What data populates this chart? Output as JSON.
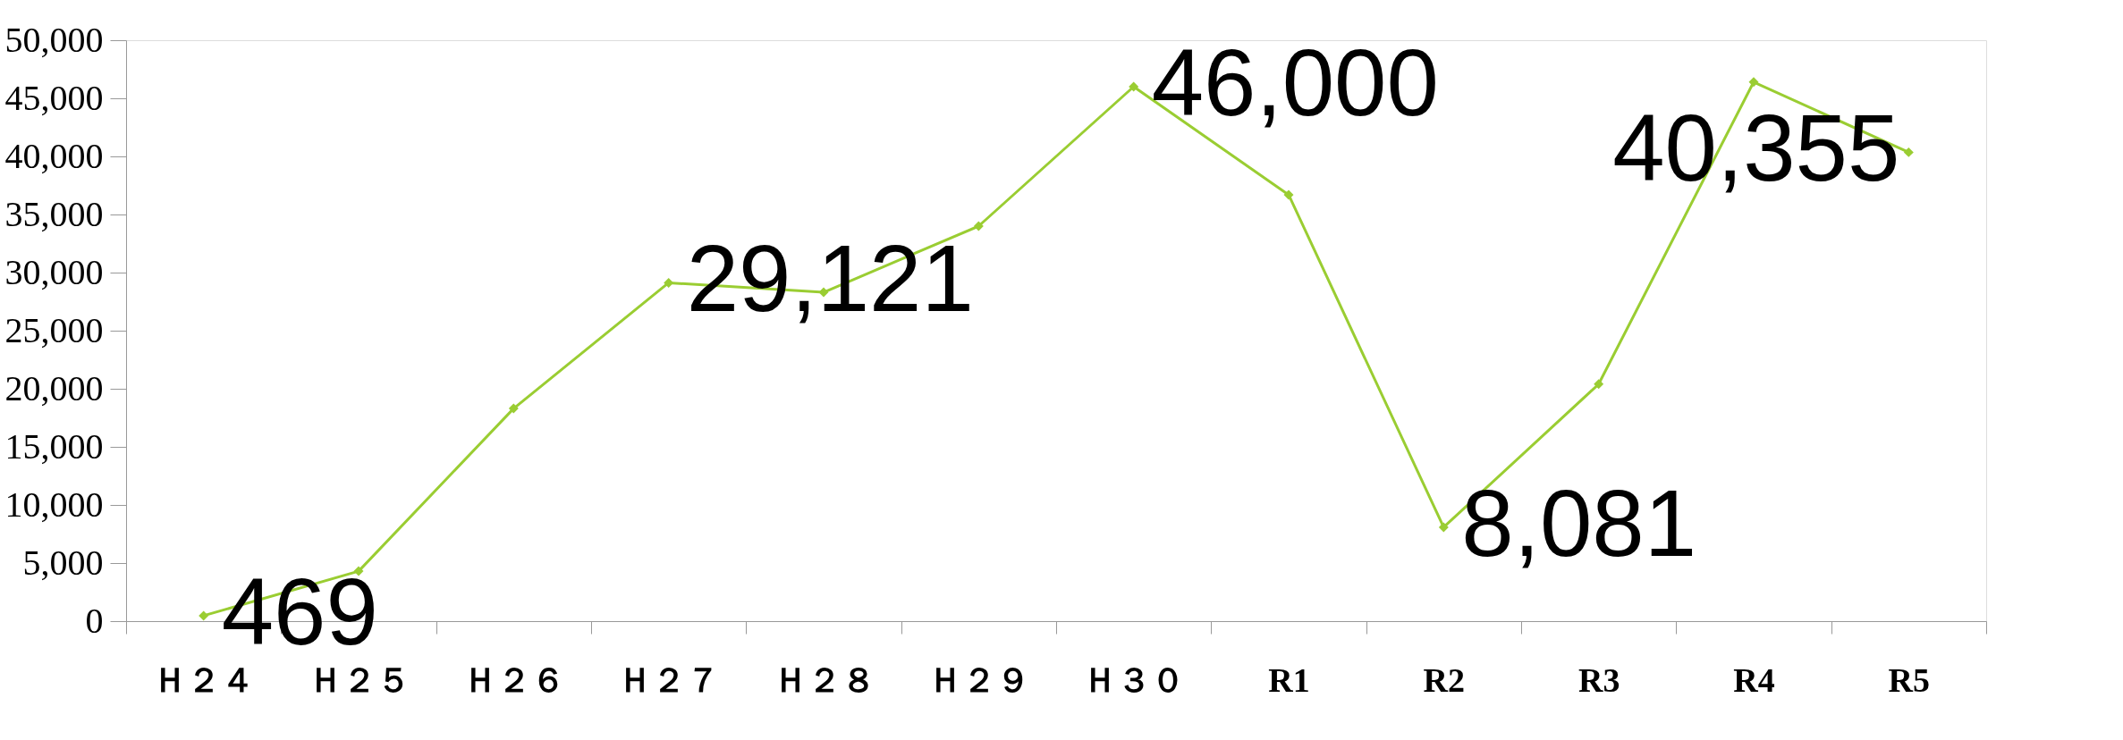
{
  "chart_data": {
    "type": "line",
    "categories": [
      "Ｈ２４",
      "Ｈ２５",
      "Ｈ２６",
      "Ｈ２７",
      "Ｈ２８",
      "Ｈ２９",
      "Ｈ３０",
      "R1",
      "R2",
      "R3",
      "R4",
      "R5"
    ],
    "series": [
      {
        "color": "#9acd32",
        "values": [
          469,
          4300,
          18300,
          29121,
          28300,
          34000,
          46000,
          36700,
          8081,
          20400,
          46400,
          40355
        ],
        "value_labels": [
          "469",
          null,
          null,
          "29,121",
          null,
          null,
          "46,000",
          null,
          "8,081",
          null,
          null,
          "40,355"
        ]
      }
    ],
    "ylim": [
      0,
      50000
    ],
    "yticks": [
      {
        "value": 0,
        "label": "0"
      },
      {
        "value": 5000,
        "label": "5,000"
      },
      {
        "value": 10000,
        "label": "10,000"
      },
      {
        "value": 15000,
        "label": "15,000"
      },
      {
        "value": 20000,
        "label": "20,000"
      },
      {
        "value": 25000,
        "label": "25,000"
      },
      {
        "value": 30000,
        "label": "30,000"
      },
      {
        "value": 35000,
        "label": "35,000"
      },
      {
        "value": 40000,
        "label": "40,000"
      },
      {
        "value": 45000,
        "label": "45,000"
      },
      {
        "value": 50000,
        "label": "50,000"
      }
    ],
    "grid": false,
    "marker": "diamond",
    "line_style": "solid"
  }
}
